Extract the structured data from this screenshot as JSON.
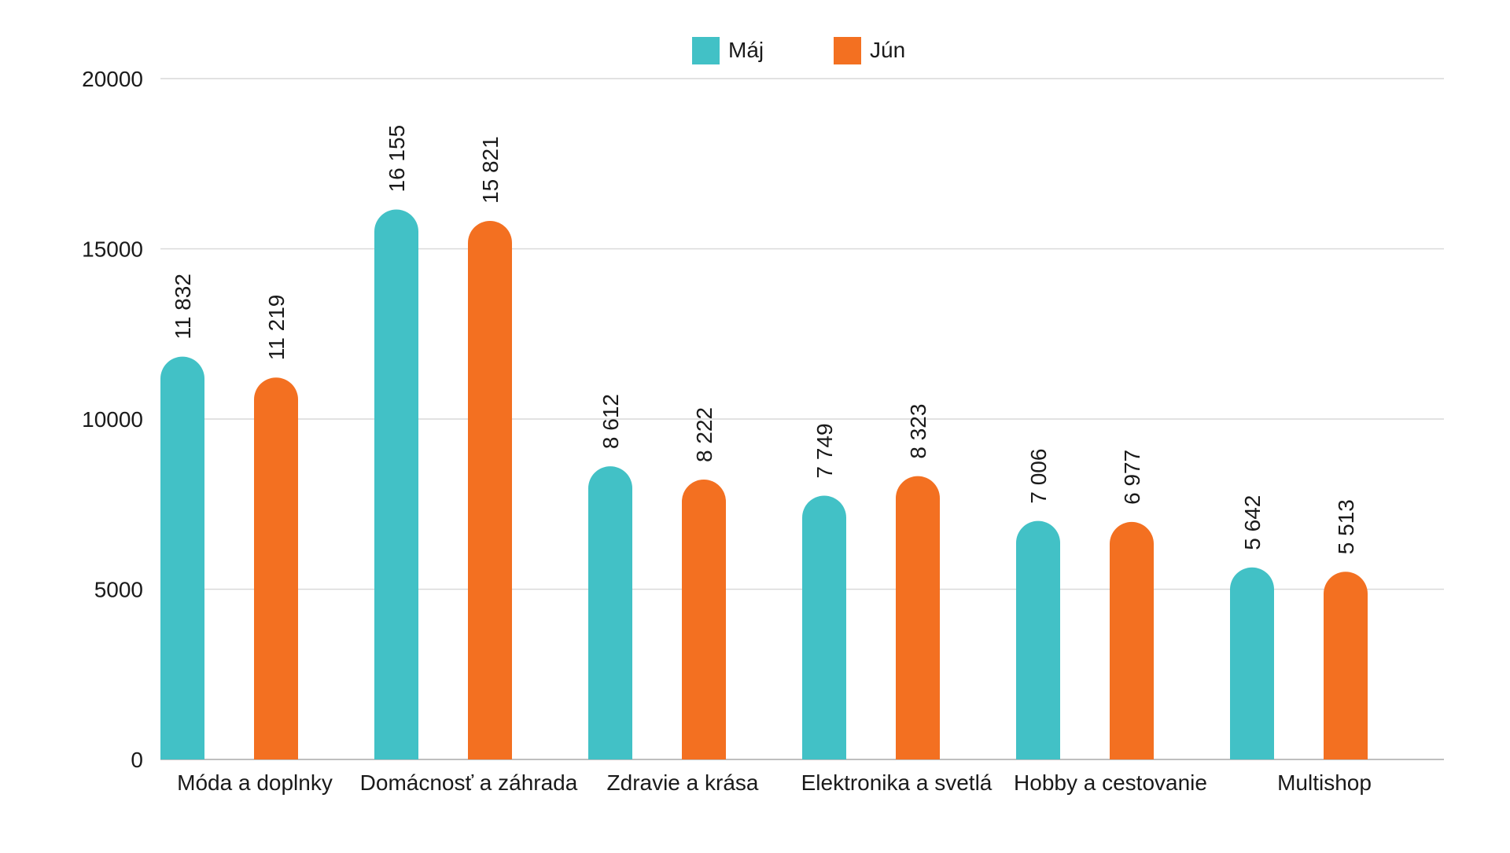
{
  "chart_data": {
    "type": "bar",
    "title": "",
    "xlabel": "",
    "ylabel": "",
    "ylim": [
      0,
      20000
    ],
    "y_ticks": [
      0,
      5000,
      10000,
      15000,
      20000
    ],
    "y_tick_labels": [
      "0",
      "5000",
      "10000",
      "15000",
      "20000"
    ],
    "grid": true,
    "legend_position": "top-center",
    "categories": [
      "Móda a doplnky",
      "Domácnosť a záhrada",
      "Zdravie a krása",
      "Elektronika a svetlá",
      "Hobby a cestovanie",
      "Multishop"
    ],
    "series": [
      {
        "name": "Máj",
        "color": "#42c1c6",
        "values": [
          11832,
          16155,
          8612,
          7749,
          7006,
          5642
        ],
        "value_labels": [
          "11 832",
          "16 155",
          "8 612",
          "7 749",
          "7 006",
          "5 642"
        ]
      },
      {
        "name": "Jún",
        "color": "#f37021",
        "values": [
          11219,
          15821,
          8222,
          8323,
          6977,
          5513
        ],
        "value_labels": [
          "11 219",
          "15 821",
          "8 222",
          "8 323",
          "6 977",
          "5 513"
        ]
      }
    ]
  }
}
